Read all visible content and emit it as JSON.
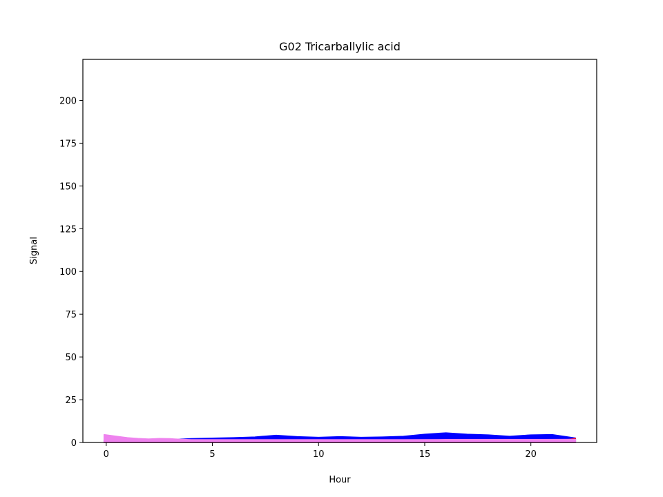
{
  "chart_data": {
    "type": "area",
    "title": "G02 Tricarballylic acid",
    "xlabel": "Hour",
    "ylabel": "Signal",
    "xlim": [
      -1.1,
      23.1
    ],
    "ylim": [
      0,
      224
    ],
    "xticks": [
      0,
      5,
      10,
      15,
      20
    ],
    "yticks": [
      0,
      25,
      50,
      75,
      100,
      125,
      150,
      175,
      200
    ],
    "grid": false,
    "series": [
      {
        "color": "#0000ff",
        "x": [
          -0.1,
          0.3,
          1,
          2,
          3,
          4,
          5,
          6,
          7,
          8,
          9,
          10,
          11,
          12,
          13,
          14,
          15,
          16,
          17,
          18,
          19,
          20,
          21,
          22.1
        ],
        "values": [
          1.5,
          0.5,
          0.6,
          1.0,
          1.6,
          2.2,
          2.5,
          2.8,
          3.2,
          4.2,
          3.4,
          3.0,
          3.4,
          3.0,
          3.2,
          3.6,
          4.8,
          5.6,
          4.8,
          4.4,
          3.6,
          4.4,
          4.6,
          2.6
        ]
      },
      {
        "color": "#ff0000",
        "x": [
          -0.1,
          1,
          2,
          4,
          6,
          8,
          10,
          12,
          14,
          16,
          18,
          20,
          21.5,
          22.1
        ],
        "values": [
          0.5,
          0.5,
          0.5,
          0.6,
          0.6,
          0.6,
          0.6,
          0.6,
          0.6,
          0.7,
          0.7,
          0.8,
          1.2,
          2.4
        ]
      },
      {
        "color": "#ee82ee",
        "x": [
          -0.1,
          0.5,
          1,
          1.5,
          2,
          2.5,
          3,
          3.5,
          4,
          5,
          6,
          8,
          10,
          12,
          14,
          16,
          18,
          20,
          22.1
        ],
        "values": [
          4.6,
          3.6,
          2.8,
          2.3,
          2.0,
          2.3,
          2.2,
          1.8,
          1.6,
          1.6,
          1.6,
          1.6,
          1.6,
          1.6,
          1.6,
          1.7,
          1.7,
          1.7,
          1.8
        ]
      }
    ]
  }
}
